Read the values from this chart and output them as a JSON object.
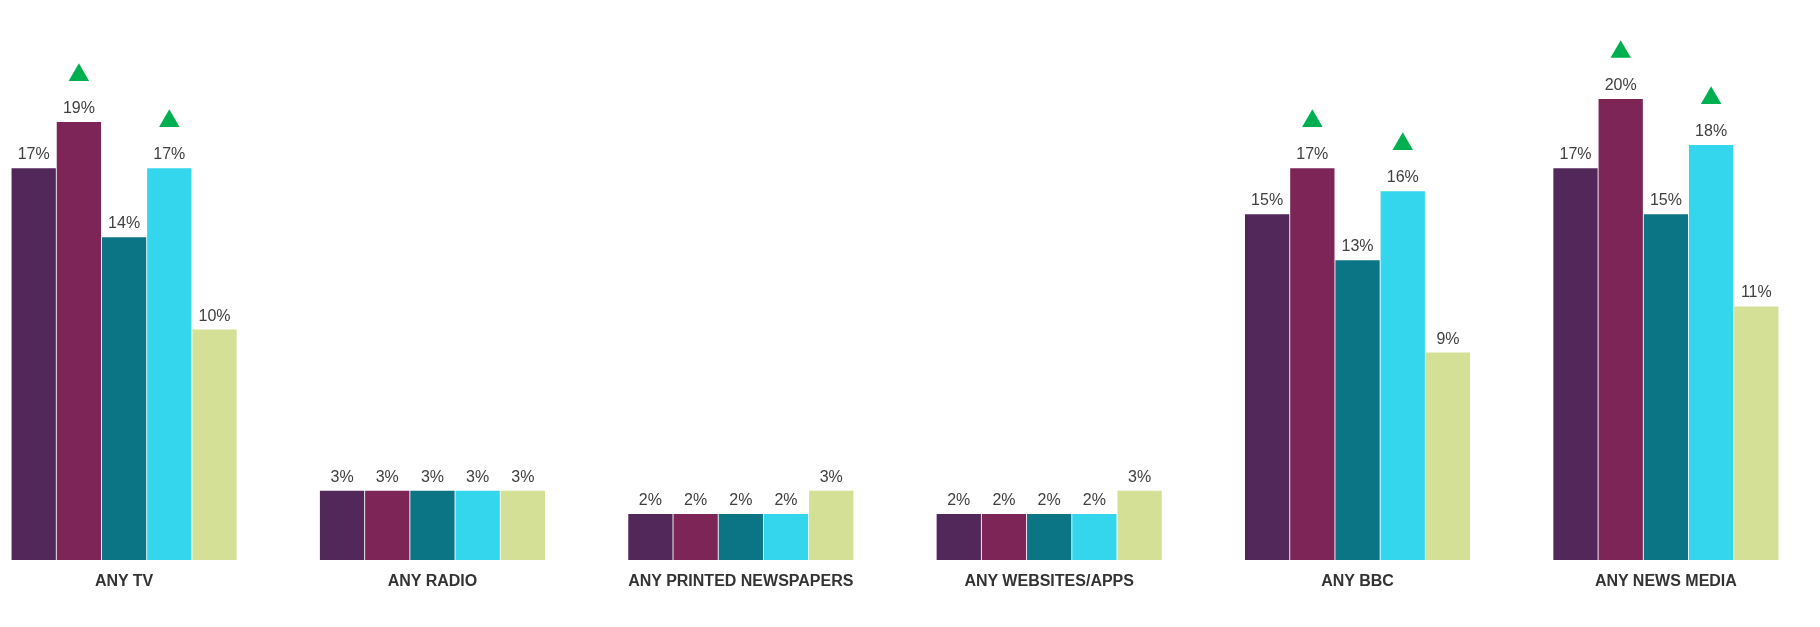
{
  "chart_data": {
    "type": "bar",
    "categories": [
      "ANY TV",
      "ANY RADIO",
      "ANY PRINTED NEWSPAPERS",
      "ANY WEBSITES/APPS",
      "ANY BBC",
      "ANY NEWS MEDIA"
    ],
    "series": [
      {
        "color": "#52275a",
        "values": [
          17,
          3,
          2,
          2,
          15,
          17
        ],
        "value_labels": [
          "17%",
          "3%",
          "2%",
          "2%",
          "15%",
          "17%"
        ]
      },
      {
        "color": "#7e2558",
        "values": [
          19,
          3,
          2,
          2,
          17,
          20
        ],
        "value_labels": [
          "19%",
          "3%",
          "2%",
          "2%",
          "17%",
          "20%"
        ]
      },
      {
        "color": "#0c7585",
        "values": [
          14,
          3,
          2,
          2,
          13,
          15
        ],
        "value_labels": [
          "14%",
          "3%",
          "2%",
          "2%",
          "13%",
          "15%"
        ]
      },
      {
        "color": "#33d6ec",
        "values": [
          17,
          3,
          2,
          2,
          16,
          18
        ],
        "value_labels": [
          "17%",
          "3%",
          "2%",
          "2%",
          "16%",
          "18%"
        ]
      },
      {
        "color": "#d4e095",
        "values": [
          10,
          3,
          3,
          3,
          9,
          11
        ],
        "value_labels": [
          "10%",
          "3%",
          "3%",
          "3%",
          "9%",
          "11%"
        ]
      }
    ],
    "legend": false
  }
}
